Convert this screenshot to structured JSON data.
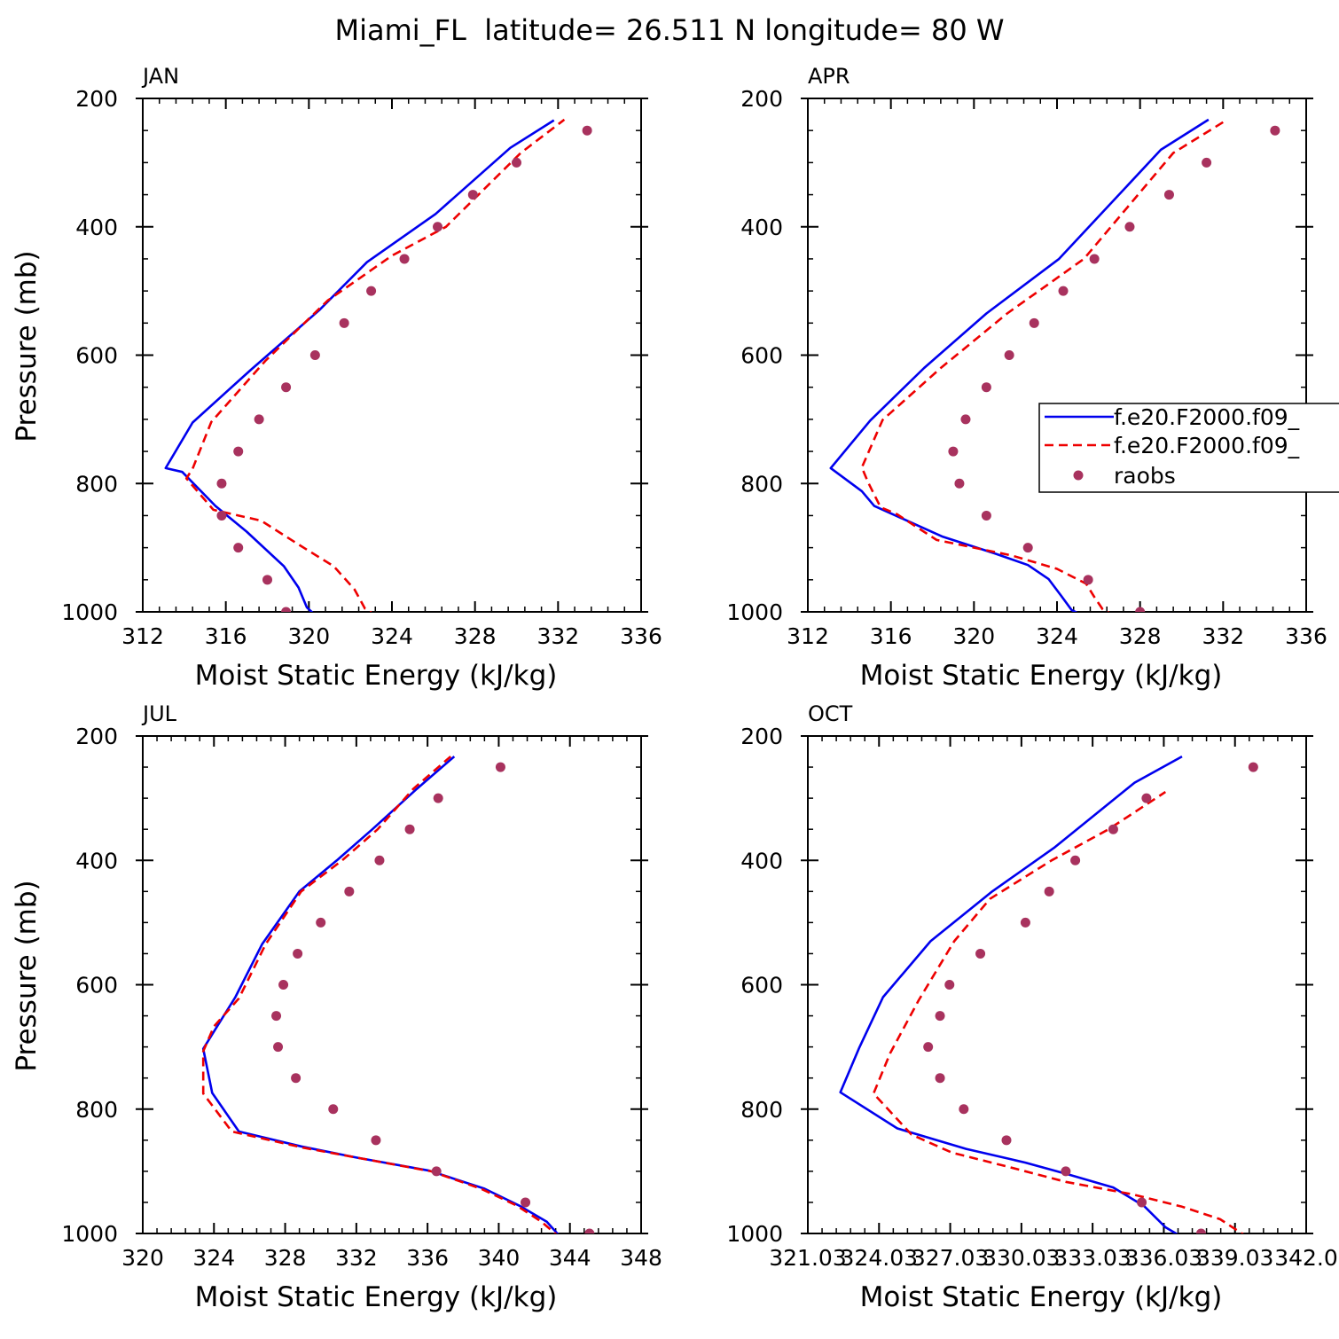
{
  "figure_title": "Miami_FL  latitude= 26.511 N longitude= 80 W",
  "colors": {
    "model1": "#0000ee",
    "model2": "#ee0000",
    "raobs": "#a8325e"
  },
  "legend": {
    "panel_index": 1,
    "entries": [
      "f.e20.F2000.f09_",
      "f.e20.F2000.f09_",
      "raobs"
    ]
  },
  "chart_data": [
    {
      "type": "line",
      "title": "JAN",
      "xlabel": "Moist Static Energy (kJ/kg)",
      "ylabel": "Pressure (mb)",
      "xlim": [
        312,
        336
      ],
      "ylim": [
        1000,
        200
      ],
      "xticks": [
        312,
        316,
        320,
        324,
        328,
        332,
        336
      ],
      "xtick_labels": [
        "312",
        "316",
        "320",
        "324",
        "328",
        "332",
        "336"
      ],
      "yticks": [
        200,
        400,
        600,
        800,
        1000
      ],
      "ytick_labels": [
        "200",
        "400",
        "600",
        "800",
        "1000"
      ],
      "series": [
        {
          "name": "f.e20.F2000.f09_",
          "style": "solid",
          "x": [
            320.4,
            319.9,
            319.5,
            318.8,
            317.0,
            315.5,
            313.9,
            313.1,
            314.4,
            317.2,
            320.5,
            322.8,
            326.1,
            329.7,
            331.8
          ],
          "y": [
            1008,
            993,
            962,
            929,
            875,
            835,
            782,
            776,
            705,
            623,
            530,
            455,
            380,
            277,
            234
          ]
        },
        {
          "name": "f.e20.F2000.f09_",
          "style": "dashed",
          "x": [
            323.3,
            322.7,
            322.2,
            321.2,
            319.5,
            317.7,
            315.4,
            314.1,
            314.4,
            315.3,
            317.9,
            320.9,
            324.0,
            326.6,
            330.2,
            332.3
          ],
          "y": [
            1007,
            995,
            965,
            929,
            895,
            858,
            841,
            792,
            777,
            704,
            609,
            515,
            445,
            400,
            285,
            233
          ]
        },
        {
          "name": "raobs",
          "style": "dots",
          "x": [
            333.4,
            330.0,
            327.9,
            326.2,
            324.6,
            323.0,
            321.7,
            320.3,
            318.9,
            317.6,
            316.6,
            315.8,
            315.8,
            316.6,
            318.0,
            318.9
          ],
          "y": [
            250,
            300,
            350,
            400,
            450,
            500,
            550,
            600,
            650,
            700,
            750,
            800,
            850,
            900,
            950,
            1000
          ]
        }
      ]
    },
    {
      "type": "line",
      "title": "APR",
      "xlabel": "Moist Static Energy (kJ/kg)",
      "ylabel": "",
      "xlim": [
        312,
        336
      ],
      "ylim": [
        1000,
        200
      ],
      "xticks": [
        312,
        316,
        320,
        324,
        328,
        332,
        336
      ],
      "xtick_labels": [
        "312",
        "316",
        "320",
        "324",
        "328",
        "332",
        "336"
      ],
      "yticks": [
        200,
        400,
        600,
        800,
        1000
      ],
      "ytick_labels": [
        "200",
        "400",
        "600",
        "800",
        "1000"
      ],
      "series": [
        {
          "name": "f.e20.F2000.f09_",
          "style": "solid",
          "x": [
            325.4,
            324.7,
            324.2,
            323.6,
            322.6,
            321.0,
            318.5,
            315.2,
            314.6,
            313.1,
            315.0,
            317.6,
            320.6,
            324.1,
            329.0,
            331.3
          ],
          "y": [
            1009,
            997,
            975,
            949,
            927,
            909,
            883,
            835,
            812,
            776,
            702,
            620,
            535,
            450,
            280,
            233
          ]
        },
        {
          "name": "f.e20.F2000.f09_",
          "style": "dashed",
          "x": [
            326.8,
            326.2,
            325.8,
            325.4,
            324.0,
            321.8,
            318.2,
            316.3,
            315.5,
            314.9,
            314.6,
            315.6,
            318.4,
            321.6,
            325.3,
            329.6,
            332.2
          ],
          "y": [
            1007,
            996,
            977,
            956,
            933,
            912,
            888,
            848,
            837,
            798,
            775,
            701,
            620,
            535,
            450,
            285,
            233
          ]
        },
        {
          "name": "raobs",
          "style": "dots",
          "x": [
            334.5,
            331.2,
            329.4,
            327.5,
            325.8,
            324.3,
            322.9,
            321.7,
            320.6,
            319.6,
            319.0,
            319.3,
            320.6,
            322.6,
            325.5,
            328.0
          ],
          "y": [
            250,
            300,
            350,
            400,
            450,
            500,
            550,
            600,
            650,
            700,
            750,
            800,
            850,
            900,
            950,
            1000
          ]
        }
      ]
    },
    {
      "type": "line",
      "title": "JUL",
      "xlabel": "Moist Static Energy (kJ/kg)",
      "ylabel": "Pressure (mb)",
      "xlim": [
        320,
        348
      ],
      "ylim": [
        1000,
        200
      ],
      "xticks": [
        320,
        324,
        328,
        332,
        336,
        340,
        344,
        348
      ],
      "xtick_labels": [
        "320",
        "324",
        "328",
        "332",
        "336",
        "340",
        "344",
        "348"
      ],
      "yticks": [
        200,
        400,
        600,
        800,
        1000
      ],
      "ytick_labels": [
        "200",
        "400",
        "600",
        "800",
        "1000"
      ],
      "series": [
        {
          "name": "f.e20.F2000.f09_",
          "style": "solid",
          "x": [
            343.6,
            342.7,
            341.2,
            339.2,
            336.1,
            332.0,
            328.9,
            325.4,
            323.9,
            323.4,
            325.2,
            326.7,
            328.8,
            330.9,
            332.9,
            335.4,
            337.5
          ],
          "y": [
            1010,
            981,
            956,
            928,
            899,
            878,
            860,
            836,
            774,
            703,
            620,
            535,
            450,
            400,
            350,
            285,
            233
          ]
        },
        {
          "name": "f.e20.F2000.f09_",
          "style": "dashed",
          "x": [
            343.5,
            342.4,
            341.0,
            339.0,
            336.2,
            332.2,
            329.0,
            325.0,
            323.4,
            323.4,
            324.0,
            325.4,
            326.9,
            328.9,
            331.2,
            333.2,
            335.2,
            337.3
          ],
          "y": [
            1008,
            981,
            955,
            928,
            900,
            879,
            862,
            836,
            775,
            707,
            667,
            622,
            535,
            450,
            400,
            350,
            285,
            233
          ]
        },
        {
          "name": "raobs",
          "style": "dots",
          "x": [
            340.1,
            336.6,
            335.0,
            333.3,
            331.6,
            330.0,
            328.7,
            327.9,
            327.5,
            327.6,
            328.6,
            330.7,
            333.1,
            336.5,
            341.5,
            345.1
          ],
          "y": [
            250,
            300,
            350,
            400,
            450,
            500,
            550,
            600,
            650,
            700,
            750,
            800,
            850,
            900,
            950,
            1000
          ]
        }
      ]
    },
    {
      "type": "line",
      "title": "OCT",
      "xlabel": "Moist Static Energy (kJ/kg)",
      "ylabel": "",
      "xlim": [
        321.03,
        342.03
      ],
      "ylim": [
        1000,
        200
      ],
      "xticks": [
        321.03,
        324.03,
        327.03,
        330.03,
        333.03,
        336.03,
        339.03,
        342.03
      ],
      "xtick_labels": [
        "321.03",
        "324.03",
        "327.03",
        "330.03",
        "333.03",
        "336.03",
        "339.03",
        "342.0"
      ],
      "yticks": [
        200,
        400,
        600,
        800,
        1000
      ],
      "ytick_labels": [
        "200",
        "400",
        "600",
        "800",
        "1000"
      ],
      "series": [
        {
          "name": "f.e20.F2000.f09_",
          "style": "solid",
          "x": [
            336.9,
            336.1,
            335.2,
            333.9,
            332.0,
            330.2,
            327.7,
            324.8,
            322.4,
            323.2,
            324.2,
            326.2,
            328.8,
            331.4,
            334.8,
            336.8
          ],
          "y": [
            1008,
            990,
            956,
            926,
            905,
            886,
            864,
            831,
            773,
            701,
            620,
            530,
            450,
            380,
            275,
            233
          ]
        },
        {
          "name": "f.e20.F2000.f09_",
          "style": "dashed",
          "x": [
            339.6,
            338.4,
            336.8,
            334.7,
            331.9,
            329.5,
            327.1,
            325.4,
            323.8,
            324.5,
            325.7,
            327.2,
            328.7,
            331.3,
            333.7,
            336.1
          ],
          "y": [
            1007,
            977,
            957,
            937,
            917,
            893,
            870,
            841,
            775,
            710,
            625,
            530,
            462,
            400,
            350,
            290
          ]
        },
        {
          "name": "raobs",
          "style": "dots",
          "x": [
            339.8,
            335.3,
            333.9,
            332.3,
            331.2,
            330.2,
            328.3,
            327.0,
            326.6,
            326.1,
            326.6,
            327.6,
            329.4,
            331.9,
            335.1,
            337.6
          ],
          "y": [
            250,
            300,
            350,
            400,
            450,
            500,
            550,
            600,
            650,
            700,
            750,
            800,
            850,
            900,
            950,
            1000
          ]
        }
      ]
    }
  ]
}
